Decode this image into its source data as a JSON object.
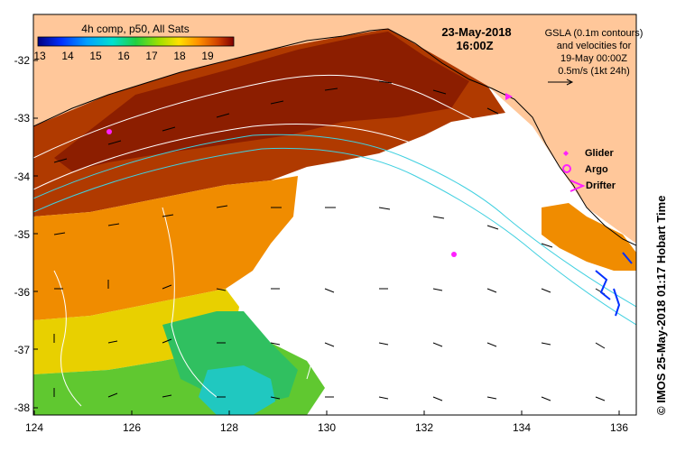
{
  "colorbar": {
    "title": "4h comp, p50, All Sats",
    "ticks": [
      "13",
      "14",
      "15",
      "16",
      "17",
      "18",
      "19"
    ]
  },
  "datetime": {
    "date": "23-May-2018",
    "time": "16:00Z"
  },
  "gsla_note": {
    "line1": "GSLA (0.1m contours)",
    "line2": "and velocities for",
    "line3": "19-May 00:00Z",
    "line4": "0.5m/s (1kt 24h)"
  },
  "legend": {
    "glider": "Glider",
    "argo": "Argo",
    "drifter": "Drifter"
  },
  "axes": {
    "x_ticks": [
      "124",
      "126",
      "128",
      "130",
      "132",
      "134",
      "136"
    ],
    "y_ticks": [
      "-32",
      "-33",
      "-34",
      "-35",
      "-36",
      "-37",
      "-38"
    ]
  },
  "credit": "© IMOS 25-May-2018 01:17 Hobart Time"
}
